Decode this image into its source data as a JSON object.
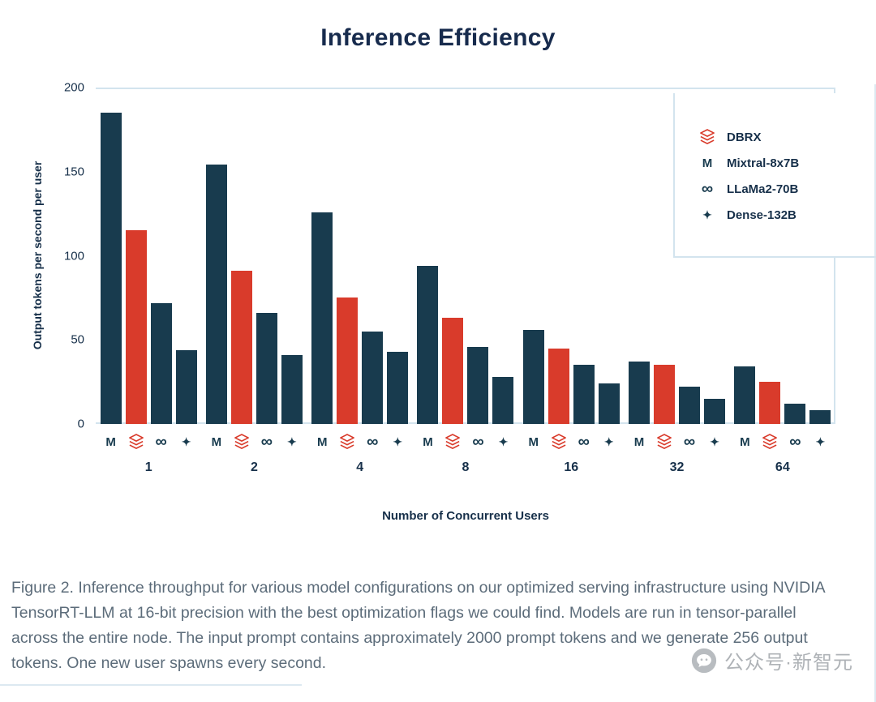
{
  "page": {
    "title": "Inference Efficiency"
  },
  "colors": {
    "title": "#172b4d",
    "text_dark": "#17304a",
    "grid": "#d3e4ee",
    "bar_dark": "#183b4e",
    "bar_red": "#d93b2b",
    "caption": "#5c6c7a",
    "watermark": "#abafb4"
  },
  "chart_data": {
    "type": "bar",
    "title": "Inference Efficiency",
    "xlabel": "Number of Concurrent Users",
    "ylabel": "Output tokens per second per user",
    "ylim": [
      0,
      200
    ],
    "yticks": [
      0,
      50,
      100,
      150,
      200
    ],
    "grid": "top-and-baseline",
    "legend_position": "top-right",
    "categories": [
      "1",
      "2",
      "4",
      "8",
      "16",
      "32",
      "64"
    ],
    "series": [
      {
        "name": "Mixtral-8x7B",
        "icon": "mixtral-icon",
        "color": "#183b4e",
        "values": [
          185,
          154,
          126,
          94,
          56,
          37,
          34
        ]
      },
      {
        "name": "DBRX",
        "icon": "dbrx-icon",
        "color": "#d93b2b",
        "values": [
          115,
          91,
          75,
          63,
          45,
          35,
          25
        ]
      },
      {
        "name": "LLaMa2-70B",
        "icon": "llama-icon",
        "color": "#183b4e",
        "values": [
          72,
          66,
          55,
          46,
          35,
          22,
          12
        ]
      },
      {
        "name": "Dense-132B",
        "icon": "dense-icon",
        "color": "#183b4e",
        "values": [
          44,
          41,
          43,
          28,
          24,
          15,
          8
        ]
      }
    ],
    "legend": [
      {
        "label": "DBRX",
        "icon": "dbrx-icon",
        "color": "#d93b2b"
      },
      {
        "label": "Mixtral-8x7B",
        "icon": "mixtral-icon",
        "color": "#183b4e"
      },
      {
        "label": "LLaMa2-70B",
        "icon": "llama-icon",
        "color": "#183b4e"
      },
      {
        "label": "Dense-132B",
        "icon": "dense-icon",
        "color": "#183b4e"
      }
    ]
  },
  "caption": "Figure 2. Inference throughput for various model configurations on our optimized serving infrastructure using NVIDIA TensorRT-LLM at 16-bit precision with the best optimization flags we could find. Models are run in tensor-parallel across the entire node. The input prompt contains approximately 2000 prompt tokens and we generate 256 output tokens. One new user spawns every second.",
  "watermark": {
    "text": "公众号·新智元",
    "icon": "wechat-icon"
  }
}
